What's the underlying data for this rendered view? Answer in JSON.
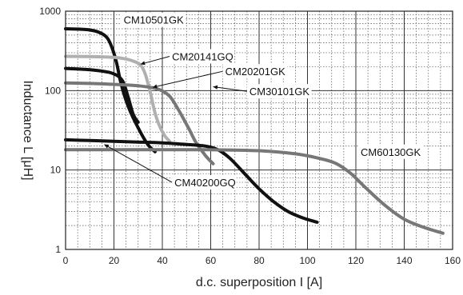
{
  "chart_data": {
    "type": "line",
    "xlabel": "d.c. superposition I [A]",
    "ylabel": "Inductance L [μH]",
    "xlim": [
      0,
      160
    ],
    "ylim": [
      1,
      1000
    ],
    "y_scale": "log",
    "x_ticks": [
      0,
      20,
      40,
      60,
      80,
      100,
      120,
      140,
      160
    ],
    "y_ticks": [
      {
        "value": 1,
        "label": "1"
      },
      {
        "value": 10,
        "label": "10"
      },
      {
        "value": 100,
        "label": "100"
      },
      {
        "value": 1000,
        "label": "1000"
      }
    ],
    "grid": true,
    "series": [
      {
        "name": "CM10501GK",
        "color": "#111111",
        "x": [
          0,
          5,
          10,
          14,
          17,
          19,
          21,
          23,
          26,
          30,
          34,
          37
        ],
        "y": [
          600,
          595,
          580,
          540,
          470,
          360,
          230,
          120,
          62,
          34,
          21,
          17
        ]
      },
      {
        "name": "CM20141GQ",
        "color": "#b0b0b0",
        "x": [
          0,
          10,
          20,
          25,
          28,
          31,
          33,
          35,
          37,
          39,
          41,
          43
        ],
        "y": [
          270,
          268,
          262,
          250,
          235,
          210,
          160,
          95,
          52,
          35,
          27,
          23
        ]
      },
      {
        "name": "CM20201GK",
        "color": "#111111",
        "x": [
          0,
          8,
          14,
          18,
          20,
          22,
          24,
          26,
          28,
          30
        ],
        "y": [
          190,
          185,
          178,
          170,
          162,
          150,
          125,
          80,
          50,
          40
        ]
      },
      {
        "name": "CM30101GK",
        "color": "#777777",
        "x": [
          0,
          10,
          20,
          30,
          38,
          43,
          47,
          51,
          54,
          58,
          61
        ],
        "y": [
          125,
          123,
          120,
          115,
          105,
          85,
          55,
          33,
          22,
          15,
          12
        ]
      },
      {
        "name": "CM40200GQ",
        "color": "#111111",
        "x": [
          0,
          10,
          20,
          30,
          40,
          50,
          58,
          63,
          68,
          74,
          80,
          86,
          92,
          98,
          104
        ],
        "y": [
          24,
          23.5,
          23,
          22.5,
          22,
          21,
          20,
          18,
          14,
          9,
          5.8,
          4,
          3,
          2.5,
          2.2
        ]
      },
      {
        "name": "CM60130GK",
        "color": "#777777",
        "x": [
          0,
          20,
          40,
          60,
          80,
          95,
          105,
          112,
          118,
          124,
          132,
          140,
          148,
          156
        ],
        "y": [
          18,
          18,
          18,
          18,
          17.5,
          16,
          14,
          12,
          9,
          6,
          3.6,
          2.4,
          1.9,
          1.6
        ]
      }
    ],
    "annotations": [
      {
        "text": "CM10501GK",
        "x": 24,
        "y": 780,
        "arrow": false
      },
      {
        "text": "CM20141GQ",
        "x": 44,
        "y": 270,
        "arrow": true
      },
      {
        "text": "CM20201GK",
        "x": 66,
        "y": 175,
        "arrow": true
      },
      {
        "text": "CM30101GK",
        "x": 76,
        "y": 98,
        "arrow": true
      },
      {
        "text": "CM60130GK",
        "x": 122,
        "y": 17,
        "arrow": false
      },
      {
        "text": "CM40200GQ",
        "x": 45,
        "y": 7,
        "arrow": true
      }
    ]
  }
}
